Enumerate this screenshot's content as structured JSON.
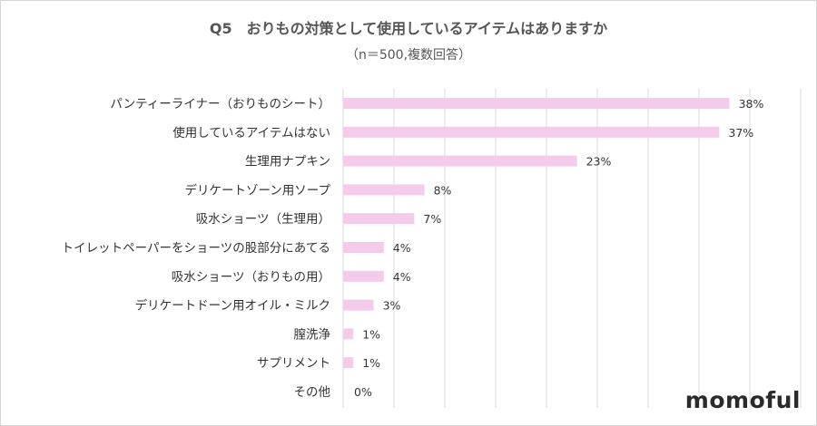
{
  "title": "Q5　おりもの対策として使用しているアイテムはありますか",
  "subtitle": "（n＝500,複数回答）",
  "logo": "momoful",
  "chart_data": {
    "type": "bar",
    "orientation": "horizontal",
    "categories": [
      "パンティーライナー（おりものシート）",
      "使用しているアイテムはない",
      "生理用ナプキン",
      "デリケートゾーン用ソープ",
      "吸水ショーツ（生理用）",
      "トイレットペーパーをショーツの股部分にあてる",
      "吸水ショーツ（おりもの用）",
      "デリケートドーン用オイル・ミルク",
      "膣洗浄",
      "サプリメント",
      "その他"
    ],
    "values": [
      38,
      37,
      23,
      8,
      7,
      4,
      4,
      3,
      1,
      1,
      0
    ],
    "value_labels": [
      "38%",
      "37%",
      "23%",
      "8%",
      "7%",
      "4%",
      "4%",
      "3%",
      "1%",
      "1%",
      "0%"
    ],
    "xlim": [
      0,
      45
    ],
    "grid": true,
    "bar_color": "#f2cce8",
    "grid_color": "#d9d9d9"
  }
}
